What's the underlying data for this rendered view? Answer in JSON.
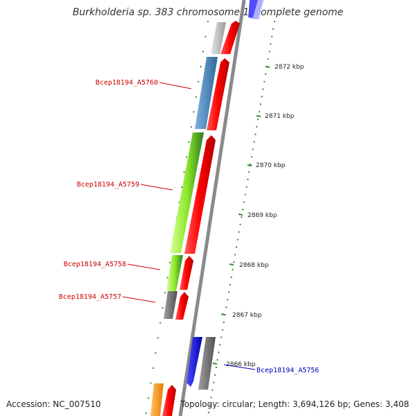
{
  "title": "Burkholderia sp. 383 chromosome 1, complete genome",
  "footer": {
    "accession": "Accession: NC_007510",
    "topology": "Topology: circular; Length: 3,694,126 bp; Genes: 3,408"
  },
  "ticks": [
    "2872 kbp",
    "2871 kbp",
    "2870 kbp",
    "2869 kbp",
    "2868 kbp",
    "2867 kbp",
    "2866 kbp"
  ],
  "gene_labels": [
    {
      "text": "Bcep18194_A5760",
      "color": "#cc0000"
    },
    {
      "text": "Bcep18194_A5759",
      "color": "#cc0000"
    },
    {
      "text": "Bcep18194_A5758",
      "color": "#cc0000"
    },
    {
      "text": "Bcep18194_A5757",
      "color": "#cc0000"
    },
    {
      "text": "Bcep18194_A5756",
      "color": "#0000bb"
    }
  ],
  "colors": {
    "backbone": "#8a8a8a",
    "cds": "#ff0000",
    "tick_marks": "#2e8b2e",
    "gene_blue": "#0000ff",
    "gene_steelblue": "#4a86b8",
    "gene_lime": "#8ee82a",
    "gene_green": "#2e7d1e",
    "gene_gray": "#707070",
    "gene_lightgray": "#c0c0c0",
    "gene_orange": "#ff9900"
  }
}
